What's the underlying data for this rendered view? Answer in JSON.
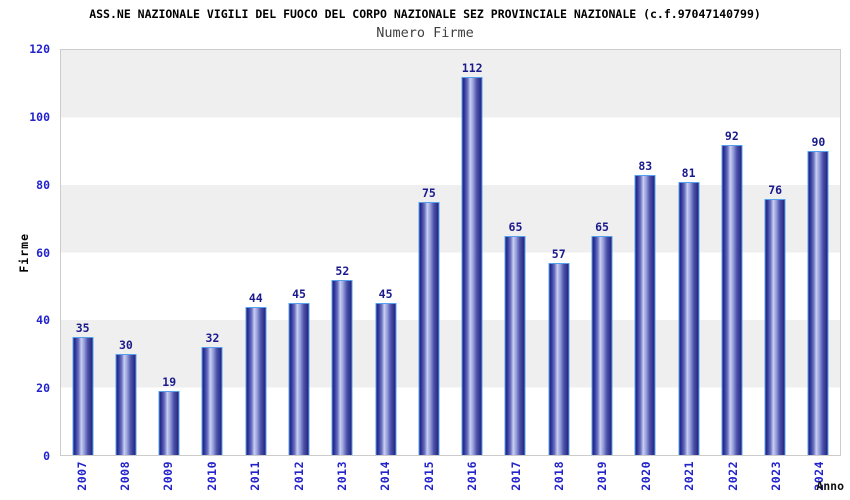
{
  "chart_data": {
    "type": "bar",
    "title": "ASS.NE NAZIONALE VIGILI DEL FUOCO DEL CORPO NAZIONALE SEZ PROVINCIALE NAZIONALE (c.f.97047140799)",
    "subtitle": "Numero Firme",
    "xlabel": "Anno",
    "ylabel": "Firme",
    "categories": [
      "2007",
      "2008",
      "2009",
      "2010",
      "2011",
      "2012",
      "2013",
      "2014",
      "2015",
      "2016",
      "2017",
      "2018",
      "2019",
      "2020",
      "2021",
      "2022",
      "2023",
      "2024"
    ],
    "values": [
      35,
      30,
      19,
      32,
      44,
      45,
      52,
      45,
      75,
      112,
      65,
      57,
      65,
      83,
      81,
      92,
      76,
      90
    ],
    "ylim": [
      0,
      120
    ],
    "yticks": [
      0,
      20,
      40,
      60,
      80,
      100,
      120
    ],
    "grid": "horizontal-bands-alternating",
    "legend_position": "none",
    "bar_value_labels_shown": true
  },
  "colors": {
    "axis_tick_label_blue": "#2323cc",
    "bar_value_label_navy": "#1a1a8c",
    "bar_gradient_dark": "#23237e",
    "bar_gradient_light": "#c9cef2",
    "bar_border_light_blue": "#55a0ec",
    "band_gray": "#efefef",
    "band_white": "#ffffff",
    "plot_border_gray": "#cccccc",
    "title_black": "#000000",
    "subtitle_gray": "#404040"
  }
}
